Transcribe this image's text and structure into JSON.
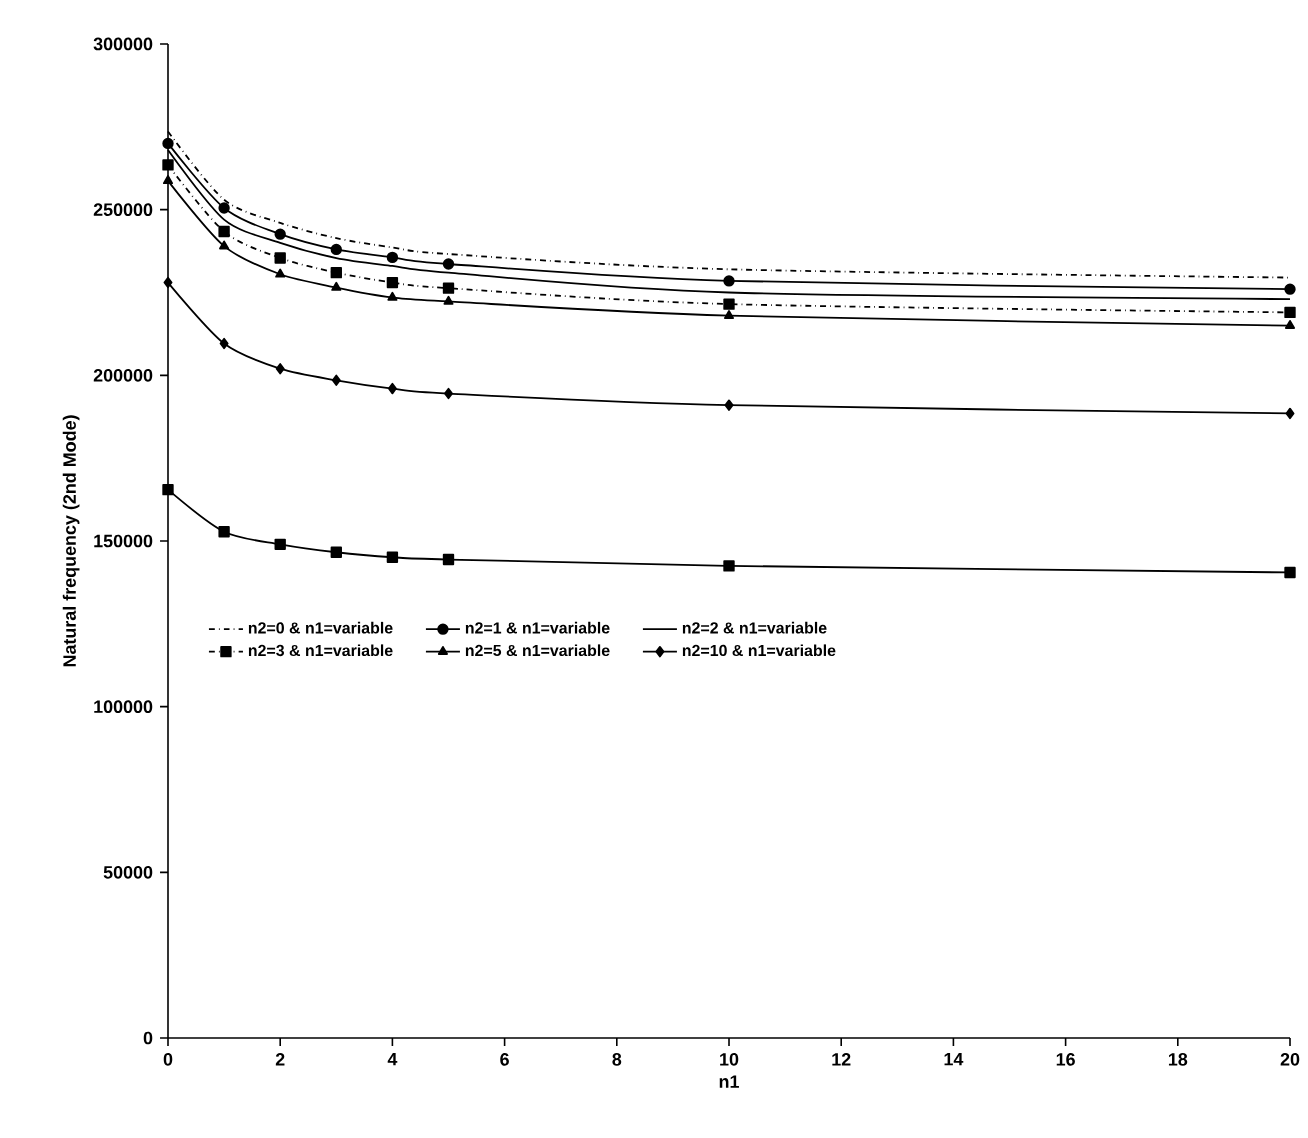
{
  "chart_data": {
    "type": "line",
    "xlabel": "n1",
    "ylabel": "Natural frequency (2nd Mode)",
    "x": [
      0,
      1,
      2,
      3,
      4,
      5,
      10,
      20
    ],
    "xlim": [
      0,
      20
    ],
    "xticks": [
      0,
      2,
      4,
      6,
      8,
      10,
      12,
      14,
      16,
      18,
      20
    ],
    "ylim": [
      0,
      300000
    ],
    "yticks": [
      0,
      50000,
      100000,
      150000,
      200000,
      250000,
      300000
    ],
    "grid": false,
    "legend": "left",
    "series": [
      {
        "name": "n2=0 & n1=variable",
        "color": "#000000",
        "marker": "none",
        "line_style": "dashed",
        "values": [
          273600,
          253000,
          246000,
          241400,
          238600,
          236600,
          232000,
          229500
        ]
      },
      {
        "name": "n2=1 & n1=variable",
        "color": "#000000",
        "marker": "circle",
        "line_style": "solid",
        "values": [
          270000,
          250500,
          242600,
          238000,
          235600,
          233600,
          228500,
          226000
        ]
      },
      {
        "name": "n2=2 & n1=variable",
        "color": "#000000",
        "marker": "none",
        "line_style": "solid",
        "values": [
          268000,
          247000,
          240000,
          235400,
          233000,
          231000,
          225000,
          223000
        ]
      },
      {
        "name": "n2=3 & n1=variable",
        "color": "#000000",
        "marker": "square",
        "line_style": "dashed",
        "values": [
          263500,
          243400,
          235400,
          231000,
          228000,
          226300,
          221500,
          219000
        ]
      },
      {
        "name": "n2=5 & n1=variable",
        "color": "#000000",
        "marker": "triangle",
        "line_style": "solid",
        "values": [
          258700,
          239000,
          230500,
          226500,
          223500,
          222300,
          218000,
          215000
        ]
      },
      {
        "name": "n2=10 & n1=variable",
        "color": "#000000",
        "marker": "diamond",
        "line_style": "solid",
        "values": [
          228000,
          209600,
          202000,
          198500,
          196000,
          194500,
          191000,
          188500
        ]
      },
      {
        "color": "#000000",
        "marker": "square",
        "line_style": "solid",
        "values": [
          165500,
          152800,
          149000,
          146600,
          145100,
          144400,
          142500,
          140500
        ]
      }
    ]
  }
}
